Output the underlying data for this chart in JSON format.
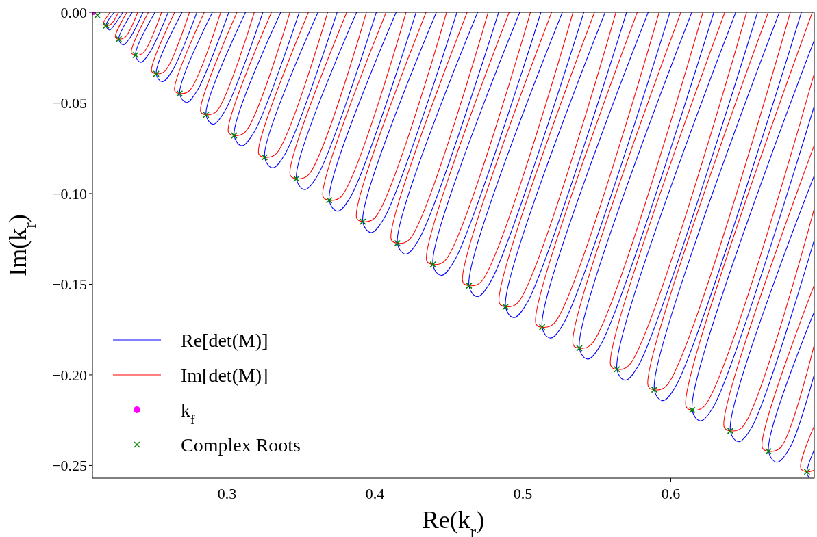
{
  "chart_data": {
    "type": "line",
    "xlabel": "Re(k$_{r}$)",
    "ylabel": "Im(k$_{r}$)",
    "xlim": [
      0.209,
      0.697
    ],
    "ylim": [
      -0.257,
      0
    ],
    "xticks": [
      0.3,
      0.4,
      0.5,
      0.6
    ],
    "yticks": [
      {
        "value": 0,
        "label": "0.00"
      },
      {
        "value": -0.05,
        "label": "−0.05"
      },
      {
        "value": -0.1,
        "label": "−0.10"
      },
      {
        "value": -0.15,
        "label": "−0.15"
      },
      {
        "value": -0.2,
        "label": "−0.20"
      },
      {
        "value": -0.25,
        "label": "−0.25"
      }
    ],
    "legend": "bottom left",
    "line_style": "solid",
    "series": [
      {
        "name": "Re[det(M)]",
        "color": "#0000ff",
        "x": [
          0.2238,
          0.2182,
          0.2206,
          0.2242,
          0.2295,
          null,
          0.2359,
          0.2268,
          0.2298,
          0.2346,
          0.2432,
          null,
          0.2513,
          0.2381,
          0.2418,
          0.2476,
          0.2602,
          null,
          0.2696,
          0.2521,
          0.2562,
          0.2628,
          0.2796,
          null,
          0.2901,
          0.268,
          0.2726,
          0.2798,
          0.3012,
          null,
          0.3125,
          0.2858,
          0.2906,
          0.2982,
          0.3242,
          null,
          0.3363,
          0.3048,
          0.31,
          0.3182,
          0.3488,
          null,
          0.3615,
          0.3254,
          0.3308,
          0.3392,
          0.3744,
          null,
          0.3876,
          0.3469,
          0.3525,
          0.3613,
          0.4009,
          null,
          0.4143,
          0.3691,
          0.3747,
          0.3835,
          0.4278,
          null,
          0.4415,
          0.3918,
          0.3974,
          0.4062,
          0.4554,
          null,
          0.4694,
          0.4152,
          0.4208,
          0.4296,
          0.4836,
          null,
          0.4979,
          0.4392,
          0.4448,
          0.4536,
          0.5122,
          null,
          0.5267,
          0.4636,
          0.4692,
          0.478,
          0.5412,
          null,
          0.5556,
          0.4883,
          0.4939,
          0.5027,
          0.5701,
          null,
          0.5847,
          0.513,
          0.5186,
          0.5274,
          0.5994,
          null,
          0.6142,
          0.5382,
          0.5438,
          0.5526,
          0.6291,
          null,
          0.6439,
          0.5636,
          0.5692,
          0.578,
          0.6586,
          null,
          0.6734,
          0.5889,
          0.5945,
          0.6033,
          0.6883,
          null,
          0.697,
          0.6145,
          0.6201,
          0.6289,
          0.697,
          null,
          0.697,
          0.6403,
          0.6459,
          0.6547,
          0.697,
          null,
          0.697,
          0.6661,
          0.6717,
          0.6805,
          0.697,
          null,
          0.697,
          0.6921,
          0.6935
        ],
        "values": [
          0,
          -0.0073,
          -0.0098,
          -0.0065,
          0,
          null,
          0,
          -0.0148,
          -0.018,
          -0.0138,
          0,
          null,
          0,
          -0.0236,
          -0.0276,
          -0.0223,
          0,
          null,
          0,
          -0.0339,
          -0.0383,
          -0.0325,
          0,
          null,
          0,
          -0.0448,
          -0.0497,
          -0.0432,
          0,
          null,
          0,
          -0.0565,
          -0.0617,
          -0.0549,
          0,
          null,
          0,
          -0.068,
          -0.0736,
          -0.0662,
          0,
          null,
          0,
          -0.08,
          -0.0858,
          -0.0782,
          0,
          null,
          0,
          -0.0918,
          -0.0978,
          -0.0899,
          0,
          null,
          0,
          -0.1037,
          -0.1097,
          -0.1018,
          0,
          null,
          0,
          -0.1155,
          -0.1215,
          -0.1136,
          0,
          null,
          0,
          -0.1274,
          -0.1334,
          -0.1255,
          0,
          null,
          0,
          -0.1391,
          -0.1451,
          -0.1372,
          0,
          null,
          0,
          -0.1508,
          -0.1568,
          -0.1489,
          0,
          null,
          0,
          -0.1624,
          -0.1684,
          -0.1605,
          0,
          null,
          0,
          -0.1737,
          -0.1797,
          -0.1718,
          0,
          null,
          0,
          -0.1853,
          -0.1913,
          -0.1834,
          0,
          null,
          0,
          -0.1969,
          -0.2029,
          -0.195,
          0,
          null,
          0,
          -0.2082,
          -0.2142,
          -0.2063,
          0,
          null,
          -0.0154,
          -0.2194,
          -0.2254,
          -0.2175,
          -0.0516,
          null,
          -0.09,
          -0.2309,
          -0.2369,
          -0.229,
          -0.1255,
          null,
          -0.1652,
          -0.2422,
          -0.2482,
          -0.2403,
          -0.1997,
          null,
          -0.2413,
          -0.2535,
          -0.257
        ]
      },
      {
        "name": "Im[det(M)]",
        "color": "#ff0000",
        "x": [
          0.2209,
          0.2164,
          0.2182,
          0.2216,
          0.2266,
          null,
          0.2323,
          0.2245,
          0.2268,
          0.2311,
          0.2396,
          null,
          0.2468,
          0.2353,
          0.2381,
          0.2434,
          0.2557,
          null,
          0.2646,
          0.249,
          0.2521,
          0.258,
          0.2746,
          null,
          0.2846,
          0.2646,
          0.268,
          0.2746,
          0.2957,
          null,
          0.3067,
          0.2822,
          0.2858,
          0.2927,
          0.3184,
          null,
          0.33,
          0.3009,
          0.3048,
          0.3122,
          0.3425,
          null,
          0.355,
          0.3214,
          0.3254,
          0.3331,
          0.368,
          null,
          0.3809,
          0.3427,
          0.3469,
          0.3549,
          0.3942,
          null,
          0.4075,
          0.3649,
          0.3691,
          0.3771,
          0.421,
          null,
          0.4345,
          0.3876,
          0.3918,
          0.3998,
          0.4484,
          null,
          0.4623,
          0.411,
          0.4152,
          0.4232,
          0.4765,
          null,
          0.4907,
          0.435,
          0.4392,
          0.4472,
          0.5051,
          null,
          0.5194,
          0.4594,
          0.4636,
          0.4716,
          0.5339,
          null,
          0.5484,
          0.4841,
          0.4883,
          0.4963,
          0.5629,
          null,
          0.5773,
          0.5088,
          0.513,
          0.521,
          0.5921,
          null,
          0.6068,
          0.534,
          0.5382,
          0.5462,
          0.6217,
          null,
          0.6365,
          0.5594,
          0.5636,
          0.5716,
          0.6512,
          null,
          0.6659,
          0.5847,
          0.5889,
          0.5969,
          0.6808,
          null,
          0.6957,
          0.6103,
          0.6145,
          0.6225,
          0.697,
          null,
          0.697,
          0.6361,
          0.6403,
          0.6483,
          0.697,
          null,
          0.697,
          0.6619,
          0.6661,
          0.6741,
          0.697,
          null,
          0.697,
          0.6879,
          0.6921,
          0.697
        ],
        "values": [
          0,
          -0.0065,
          -0.0073,
          -0.0065,
          0,
          null,
          0,
          -0.0137,
          -0.0148,
          -0.0137,
          0,
          null,
          0,
          -0.0223,
          -0.0236,
          -0.0223,
          0,
          null,
          0,
          -0.0324,
          -0.0339,
          -0.0324,
          0,
          null,
          0,
          -0.0432,
          -0.0448,
          -0.0432,
          0,
          null,
          0,
          -0.0548,
          -0.0565,
          -0.0548,
          0,
          null,
          0,
          -0.0661,
          -0.068,
          -0.0661,
          0,
          null,
          0,
          -0.0781,
          -0.08,
          -0.0781,
          0,
          null,
          0,
          -0.0898,
          -0.0918,
          -0.0898,
          0,
          null,
          0,
          -0.1017,
          -0.1037,
          -0.1017,
          0,
          null,
          0,
          -0.1135,
          -0.1155,
          -0.1135,
          0,
          null,
          0,
          -0.1254,
          -0.1274,
          -0.1254,
          0,
          null,
          0,
          -0.1371,
          -0.1391,
          -0.1371,
          0,
          null,
          0,
          -0.1488,
          -0.1508,
          -0.1488,
          0,
          null,
          0,
          -0.1604,
          -0.1624,
          -0.1604,
          0,
          null,
          0,
          -0.1717,
          -0.1737,
          -0.1717,
          0,
          null,
          0,
          -0.1833,
          -0.1853,
          -0.1833,
          0,
          null,
          0,
          -0.1949,
          -0.1969,
          -0.1949,
          0,
          null,
          0,
          -0.2062,
          -0.2082,
          -0.2062,
          0,
          null,
          0,
          -0.2174,
          -0.2194,
          -0.2174,
          -0.0337,
          null,
          -0.0733,
          -0.2289,
          -0.2309,
          -0.2289,
          -0.1083,
          null,
          -0.1504,
          -0.2402,
          -0.2422,
          -0.2402,
          -0.1833,
          null,
          -0.2281,
          -0.2515,
          -0.2535,
          -0.2525
        ]
      },
      {
        "name": "k$_{f}$",
        "type": "scatter",
        "marker": "circle",
        "color": "#ff00ff",
        "x": [
          0.2095
        ],
        "values": [
          0
        ]
      },
      {
        "name": "Complex Roots",
        "type": "scatter",
        "marker": "cross",
        "color": "#008000",
        "x": [
          0.2123,
          0.2182,
          0.2268,
          0.2381,
          0.2521,
          0.268,
          0.2858,
          0.3048,
          0.3254,
          0.3469,
          0.3691,
          0.3918,
          0.4152,
          0.4392,
          0.4636,
          0.4883,
          0.513,
          0.5382,
          0.5636,
          0.5889,
          0.6145,
          0.6403,
          0.6661,
          0.6921
        ],
        "values": [
          -0.0017,
          -0.0073,
          -0.0148,
          -0.0236,
          -0.0339,
          -0.0448,
          -0.0565,
          -0.068,
          -0.08,
          -0.0918,
          -0.1037,
          -0.1155,
          -0.1274,
          -0.1391,
          -0.1508,
          -0.1624,
          -0.1737,
          -0.1853,
          -0.1969,
          -0.2082,
          -0.2194,
          -0.2309,
          -0.2422,
          -0.2535
        ]
      }
    ]
  }
}
